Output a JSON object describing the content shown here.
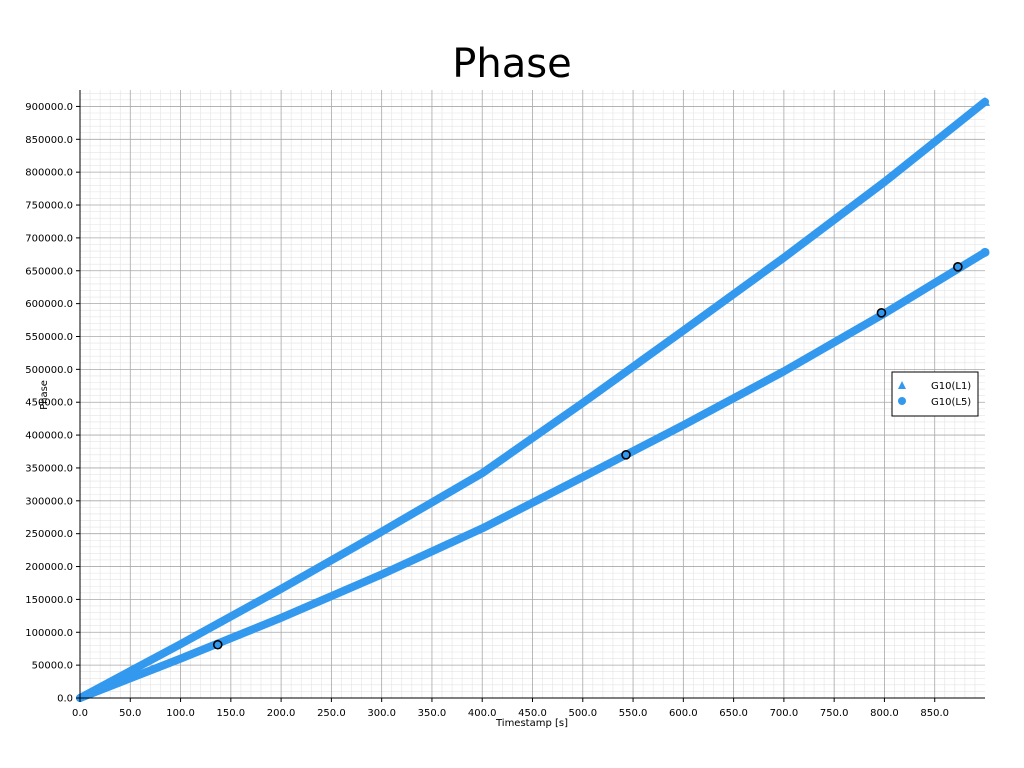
{
  "chart_data": {
    "type": "scatter",
    "title": "Phase",
    "xlabel": "Timestamp [s]",
    "ylabel": "Phase",
    "xlim": [
      0,
      900
    ],
    "ylim": [
      0,
      925000
    ],
    "x_ticks": [
      "0.0",
      "50.0",
      "100.0",
      "150.0",
      "200.0",
      "250.0",
      "300.0",
      "350.0",
      "400.0",
      "450.0",
      "500.0",
      "550.0",
      "600.0",
      "650.0",
      "700.0",
      "750.0",
      "800.0",
      "850.0"
    ],
    "y_ticks": [
      "0.0",
      "50000.0",
      "100000.0",
      "150000.0",
      "200000.0",
      "250000.0",
      "300000.0",
      "350000.0",
      "400000.0",
      "450000.0",
      "500000.0",
      "550000.0",
      "600000.0",
      "650000.0",
      "700000.0",
      "750000.0",
      "800000.0",
      "850000.0",
      "900000.0"
    ],
    "grid": true,
    "legend_position": "right",
    "series": [
      {
        "name": "G10(L1)",
        "marker": "triangle",
        "color": "#3399ee",
        "x": [
          0,
          100,
          200,
          300,
          400,
          500,
          600,
          700,
          800,
          900
        ],
        "y": [
          0,
          82000,
          166000,
          253000,
          342000,
          449000,
          559000,
          670000,
          785000,
          907000
        ]
      },
      {
        "name": "G10(L5)",
        "marker": "circle",
        "color": "#3399ee",
        "x": [
          0,
          100,
          200,
          300,
          400,
          500,
          600,
          700,
          800,
          900
        ],
        "y": [
          0,
          60000,
          122000,
          188000,
          258000,
          336000,
          415000,
          497000,
          585000,
          678000
        ]
      }
    ],
    "annotations": [
      {
        "x": 137,
        "y": 81000,
        "marker": "ring"
      },
      {
        "x": 543,
        "y": 370000,
        "marker": "ring"
      },
      {
        "x": 797,
        "y": 586000,
        "marker": "ring"
      },
      {
        "x": 873,
        "y": 656000,
        "marker": "ring"
      }
    ]
  }
}
